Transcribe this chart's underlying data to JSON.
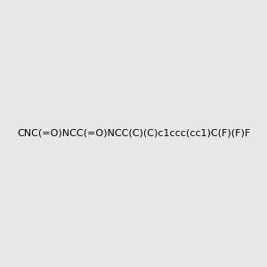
{
  "smiles": "CNC(=O)NCC(=O)NCC(C)(C)c1ccc(cc1)C(F)(F)F",
  "image_size": 300,
  "background_color": "#e8e8e8",
  "title": ""
}
